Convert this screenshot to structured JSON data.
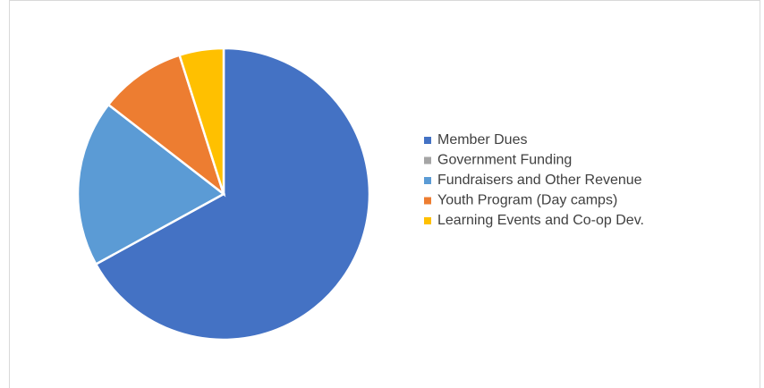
{
  "chart_data": {
    "type": "pie",
    "categories": [
      "Member Dues",
      "Government Funding",
      "Fundraisers and Other Revenue",
      "Youth Program (Day camps)",
      "Learning Events and Co-op Dev."
    ],
    "values": [
      67,
      0,
      18.5,
      9.6,
      4.9
    ],
    "colors": [
      "#4472c4",
      "#a5a5a5",
      "#5b9bd5",
      "#ed7d31",
      "#ffc000"
    ],
    "legend": "right"
  }
}
